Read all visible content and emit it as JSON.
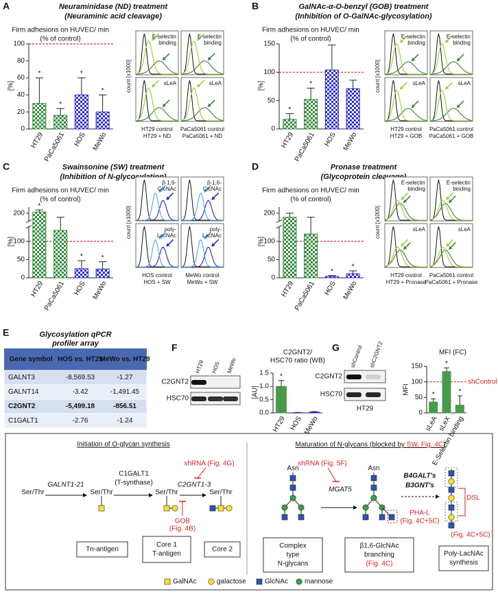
{
  "chart_data": [
    {
      "type": "bar",
      "panel": "A",
      "title": "Neuraminidase (ND) treatment",
      "subtitle": "(Neuraminic acid cleavage)",
      "y_title": [
        "Firm adhesions on HUVEC/ min",
        "(% of control)"
      ],
      "ylabel": "[%]",
      "categories": [
        "HT29",
        "PaCa5061",
        "HOS",
        "MeWo"
      ],
      "values": [
        30,
        16,
        40,
        20
      ],
      "errors": [
        30,
        8,
        20,
        20
      ],
      "stars": [
        "*",
        "*",
        "*",
        "*"
      ],
      "colors": [
        "#2e8b3a",
        "#2e8b3a",
        "#2b2bd0",
        "#2b2bd0"
      ],
      "pattern": "checker",
      "ylim": [
        0,
        100
      ],
      "yticks": [
        0,
        20,
        40,
        60,
        80,
        100
      ],
      "reference_line": 100
    },
    {
      "type": "bar",
      "panel": "B",
      "title": "GalNAc-α-O-benzyl (GOB) treatment",
      "subtitle": "(Inhibition of O-GalNAc-glycosylation)",
      "y_title": [
        "Firm adhesions on HUVEC/ min",
        "(% of control)"
      ],
      "ylabel": "[%]",
      "categories": [
        "HT29",
        "PaCa5061",
        "HOS",
        "MeWo"
      ],
      "values": [
        17,
        52,
        104,
        71
      ],
      "errors": [
        10,
        20,
        44,
        15
      ],
      "stars": [
        "*",
        "*",
        null,
        null
      ],
      "colors": [
        "#2e8b3a",
        "#2e8b3a",
        "#2b2bd0",
        "#2b2bd0"
      ],
      "pattern": "checker",
      "ylim": [
        0,
        150
      ],
      "yticks": [
        0,
        50,
        100,
        150
      ],
      "reference_line": 100
    },
    {
      "type": "bar",
      "panel": "C",
      "title": "Swainsonine (SW) treatment",
      "subtitle": "(Inhibition of N-glycosylation)",
      "y_title": [
        "Firm adhesions on HUVEC/ min",
        "(% of control)"
      ],
      "ylabel": "[%]",
      "categories": [
        "HT29",
        "PaCa5061",
        "HOS",
        "MeWo"
      ],
      "values": [
        203,
        130,
        25,
        24
      ],
      "errors": [
        5,
        60,
        22,
        20
      ],
      "stars": [
        "*",
        null,
        "*",
        "*"
      ],
      "colors": [
        "#2e8b3a",
        "#2e8b3a",
        "#2b2bd0",
        "#2b2bd0"
      ],
      "pattern": "checker",
      "ylim": [
        0,
        215
      ],
      "ybreak": [
        140,
        180
      ],
      "yticks": [
        0,
        50,
        100,
        200
      ],
      "reference_line": 100
    },
    {
      "type": "bar",
      "panel": "D",
      "title": "Pronase treatment",
      "subtitle": "(Glycoprotein cleavage)",
      "y_title": [
        "Firm adhesions on HUVEC/ min",
        "(% of control)"
      ],
      "ylabel": "[%]",
      "categories": [
        "HT29",
        "PaCa5061",
        "HOS",
        "MeWo"
      ],
      "values": [
        190,
        120,
        4,
        11
      ],
      "errors": [
        10,
        70,
        2,
        8
      ],
      "stars": [
        null,
        null,
        "*",
        "*"
      ],
      "colors": [
        "#2e8b3a",
        "#2e8b3a",
        "#2b2bd0",
        "#2b2bd0"
      ],
      "pattern": "checker",
      "ylim": [
        0,
        215
      ],
      "ybreak": [
        140,
        180
      ],
      "yticks": [
        0,
        50,
        100,
        200
      ],
      "reference_line": 100
    },
    {
      "type": "bar",
      "panel": "F",
      "title": [
        "C2GNT2/",
        "HSC70 ratio (WB)"
      ],
      "ylabel": "[AU]",
      "categories": [
        "HT29",
        "HOS",
        "MeWo"
      ],
      "values": [
        1.0,
        0.01,
        0.03
      ],
      "errors": [
        0.22,
        0.01,
        0.02
      ],
      "stars": [
        "*",
        null,
        null
      ],
      "colors": [
        "#4a9a4a",
        "#2b2bd0",
        "#2b2bd0"
      ],
      "pattern": "solid",
      "ylim": [
        0,
        1.5
      ],
      "yticks": [
        {
          "value": 0,
          "label": "0.0"
        },
        0.5,
        {
          "value": 1,
          "label": "1.0"
        },
        1.5
      ]
    },
    {
      "type": "bar",
      "panel": "G",
      "title": [
        "MFI (FC)"
      ],
      "ylabel": "MFI",
      "categories": [
        "sLeA",
        "sLeX",
        "E-Selectin binding"
      ],
      "values": [
        35,
        133,
        25
      ],
      "errors": [
        10,
        12,
        30
      ],
      "stars": [
        "*",
        "*",
        "*"
      ],
      "colors": [
        "#4a9a4a",
        "#4a9a4a",
        "#4a9a4a"
      ],
      "pattern": "solid",
      "ylim": [
        0,
        150
      ],
      "yticks": [
        0,
        50,
        100,
        150
      ],
      "reference_line": 100,
      "reference_label": "shControl"
    }
  ],
  "histograms": [
    {
      "panel": "A",
      "y_label": "count [x1000]",
      "labels": [
        [
          "E-selectin",
          "binding"
        ],
        [
          "E-selectin",
          "binding"
        ],
        [
          "sLeA"
        ],
        [
          "sLeA"
        ]
      ],
      "legend": [
        [
          "HT29 control",
          "HT29 + ND"
        ],
        [
          "PaCa5061 control",
          "PaCa5061 + ND"
        ]
      ],
      "colors": [
        "#3b7d3e",
        "#9acd32"
      ]
    },
    {
      "panel": "B",
      "y_label": "count [x1000]",
      "labels": [
        [
          "E-selectin",
          "binding"
        ],
        [
          "E-selectin",
          "binding"
        ],
        [
          "sLeA"
        ],
        [
          "sLeA"
        ]
      ],
      "legend": [
        [
          "HT29 control",
          "HT29 + GOB"
        ],
        [
          "PaCa5061 control",
          "PaCa5061 + GOB"
        ]
      ],
      "colors": [
        "#3b7d3e",
        "#9acd32"
      ]
    },
    {
      "panel": "C",
      "y_label": "count [x1000]",
      "labels": [
        [
          "β-1,6-",
          "GlcNAc"
        ],
        [
          "β-1,6-",
          "GlcNAc"
        ],
        [
          "poly-",
          "LacNAc"
        ],
        [
          "poly-",
          "LacNAc"
        ]
      ],
      "legend": [
        [
          "HOS control",
          "HOS + SW"
        ],
        [
          "MeWo control",
          "MeWo + SW"
        ]
      ],
      "colors": [
        "#2020c0",
        "#4aa8e8"
      ]
    },
    {
      "panel": "D",
      "y_label": "count [x1000]",
      "labels": [
        [
          "E-selectin",
          "binding"
        ],
        [
          "E-selectin",
          "binding"
        ],
        [
          "sLeA"
        ],
        [
          "sLeA"
        ]
      ],
      "legend": [
        [
          "HT29 control",
          "HT29 + Pronase"
        ],
        [
          "PaCa5061 control",
          "PaCa5061 + Pronase"
        ]
      ],
      "colors": [
        "#3b7d3e",
        "#9acd32"
      ]
    }
  ],
  "table": {
    "panel": "E",
    "title": [
      "Glycosylation qPCR",
      "profiler array"
    ],
    "header": [
      "Gene symbol",
      "HOS vs. HT29",
      "MeWo vs. HT29"
    ],
    "rows": [
      [
        "GALNT3",
        "-8,569.53",
        "-1.27"
      ],
      [
        "GALNT14",
        "-3.42",
        "-1,491.45"
      ],
      [
        "C2GNT2",
        "-5,499.18",
        "-856.51"
      ],
      [
        "C1GALT1",
        "-2.76",
        "-1.24"
      ]
    ]
  },
  "blots": {
    "F": {
      "lanes": [
        "HT29",
        "HOS",
        "MeWo"
      ],
      "rows": [
        "C2GNT2",
        "HSC70"
      ]
    },
    "G": {
      "lanes": [
        "shControl",
        "shC2GNT2"
      ],
      "rows": [
        "C2GNT2",
        "HSC70"
      ],
      "cell_line": "HT29"
    }
  },
  "diagram": {
    "left_title": "Initiation of O-glycan synthesis",
    "right_title": [
      "Maturation of N-glycans (blocked by ",
      "SW, Fig. 4C",
      ")"
    ],
    "ser_thr": [
      "Ser/Thr",
      "Ser/Thr",
      "Ser/Thr",
      "Ser/Thr"
    ],
    "asn": [
      "Asn",
      "Asn"
    ],
    "enzymes": {
      "galnt": "GALNT1-21",
      "c1galt1": "C1GALT1",
      "t_synthase": "(T-synthase)",
      "c2gnt": "C2GNT1-3",
      "mgat5": "MGAT5",
      "b4galt": "B4GALT's",
      "b3gnt": "B3GNT's"
    },
    "inhibitors": {
      "shrna_g": "shRNA (Fig. 4G)",
      "gob": "GOB",
      "gob_fig": "(Fig. 4B)",
      "shrna_f": "shRNA (Fig. 5F)",
      "phal": "PHA-L",
      "phal_fig": "(Fig. 4C+5C)",
      "dsl": "DSL",
      "dsl_fig": "(Fig. 4C+5C)"
    },
    "boxes": [
      [
        "Tn-antigen"
      ],
      [
        "Core 1",
        "T-antigen"
      ],
      [
        "Core 2"
      ],
      [
        "Complex",
        "type",
        "N-glycans"
      ],
      [
        "β1,6-GlcNAc",
        "branching",
        "(Fig. 4C)"
      ],
      [
        "Poly-LacNAc",
        "synthesis"
      ]
    ],
    "legend": [
      "GalNAc",
      "galactose",
      "GlcNAc",
      "mannose"
    ]
  }
}
